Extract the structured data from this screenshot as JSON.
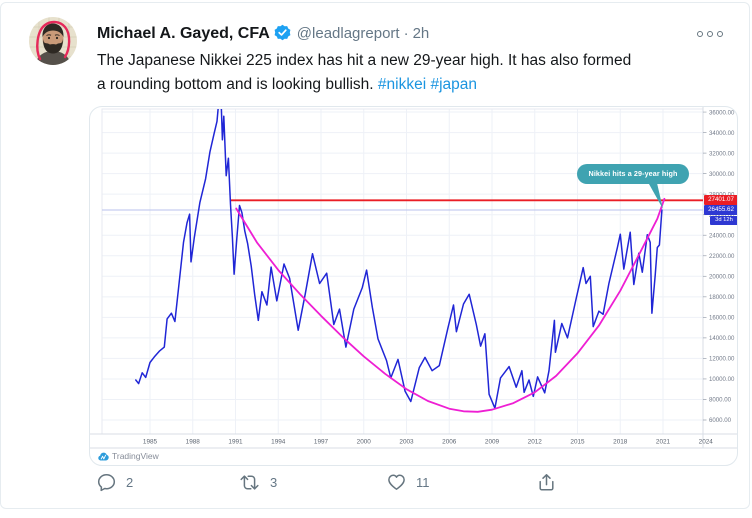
{
  "tweet": {
    "author": {
      "name": "Michael A. Gayed, CFA",
      "handle": "@leadlagreport",
      "separator": "·",
      "time": "2h"
    },
    "body": {
      "line1": "The Japanese Nikkei 225 index has hit a new 29-year high. It has also formed",
      "line2": "a rounding bottom and is looking bullish.",
      "hashtag1": "#nikkei",
      "hashtag2": "#japan"
    },
    "actions": {
      "reply_count": "2",
      "retweet_count": "3",
      "like_count": "11"
    }
  },
  "chart_data": {
    "type": "line",
    "title": "",
    "watermark": "TradingView",
    "annotation": "Nikkei hits a 29-year high",
    "legend_position": "none",
    "grid": true,
    "x_ticks": [
      "1985",
      "1988",
      "1991",
      "1994",
      "1997",
      "2000",
      "2003",
      "2006",
      "2009",
      "2012",
      "2015",
      "2018",
      "2021",
      "2024"
    ],
    "y_ticks": [
      {
        "value": 36000,
        "label": "36000.00"
      },
      {
        "value": 34000,
        "label": "34000.00"
      },
      {
        "value": 32000,
        "label": "32000.00"
      },
      {
        "value": 30000,
        "label": "30000.00"
      },
      {
        "value": 28000,
        "label": "28000.00"
      },
      {
        "value": 26000,
        "label": "26000.00"
      },
      {
        "value": 24000,
        "label": "24000.00"
      },
      {
        "value": 22000,
        "label": "22000.00"
      },
      {
        "value": 20000,
        "label": "20000.00"
      },
      {
        "value": 18000,
        "label": "18000.00"
      },
      {
        "value": 16000,
        "label": "16000.00"
      },
      {
        "value": 14000,
        "label": "14000.00"
      },
      {
        "value": 12000,
        "label": "12000.00"
      },
      {
        "value": 10000,
        "label": "10000.00"
      },
      {
        "value": 8000,
        "label": "8000.00"
      },
      {
        "value": 6000,
        "label": "6000.00"
      }
    ],
    "price_line": {
      "value": 27401.07,
      "label": "27401.07",
      "start_year": 1990.62,
      "color": "#ea1d25"
    },
    "current_price": {
      "value": 26455.62,
      "label": "26455.62",
      "countdown": "3d 12h",
      "color": "#2e38d2"
    },
    "colors": {
      "series": "#2026d6",
      "curve": "#ee1fd3",
      "callout": "#3fa3b1",
      "grid": "#eef1f7",
      "axis_text": "#737b8a"
    },
    "series": [
      {
        "name": "Nikkei 225",
        "color": "#2026d6",
        "width": 1.5,
        "points": [
          [
            1984.0,
            9900
          ],
          [
            1984.2,
            9550
          ],
          [
            1984.45,
            10600
          ],
          [
            1984.7,
            10150
          ],
          [
            1985.0,
            11600
          ],
          [
            1985.3,
            12150
          ],
          [
            1985.65,
            12700
          ],
          [
            1986.0,
            13100
          ],
          [
            1986.2,
            15850
          ],
          [
            1986.5,
            16400
          ],
          [
            1986.75,
            15600
          ],
          [
            1987.0,
            18800
          ],
          [
            1987.35,
            23300
          ],
          [
            1987.6,
            25200
          ],
          [
            1987.78,
            26050
          ],
          [
            1987.88,
            21400
          ],
          [
            1988.1,
            23700
          ],
          [
            1988.5,
            27200
          ],
          [
            1988.9,
            29500
          ],
          [
            1989.2,
            32100
          ],
          [
            1989.5,
            33900
          ],
          [
            1989.7,
            35100
          ],
          [
            1989.95,
            38900
          ],
          [
            1990.08,
            33300
          ],
          [
            1990.18,
            35600
          ],
          [
            1990.35,
            29800
          ],
          [
            1990.5,
            31500
          ],
          [
            1990.65,
            27000
          ],
          [
            1990.78,
            23800
          ],
          [
            1990.9,
            20200
          ],
          [
            1991.1,
            23800
          ],
          [
            1991.28,
            26900
          ],
          [
            1991.45,
            26200
          ],
          [
            1991.65,
            24400
          ],
          [
            1991.85,
            23200
          ],
          [
            1992.1,
            21000
          ],
          [
            1992.35,
            18200
          ],
          [
            1992.6,
            15700
          ],
          [
            1992.85,
            18500
          ],
          [
            1993.2,
            17200
          ],
          [
            1993.5,
            20900
          ],
          [
            1993.9,
            17600
          ],
          [
            1994.4,
            21200
          ],
          [
            1994.8,
            19800
          ],
          [
            1995.4,
            14750
          ],
          [
            1995.9,
            18300
          ],
          [
            1996.4,
            22200
          ],
          [
            1996.9,
            19300
          ],
          [
            1997.4,
            20300
          ],
          [
            1997.9,
            15300
          ],
          [
            1998.3,
            16800
          ],
          [
            1998.75,
            13100
          ],
          [
            1999.3,
            16800
          ],
          [
            1999.9,
            18900
          ],
          [
            2000.2,
            20600
          ],
          [
            2000.6,
            17000
          ],
          [
            2001.0,
            13900
          ],
          [
            2001.6,
            11800
          ],
          [
            2001.9,
            10100
          ],
          [
            2002.4,
            11900
          ],
          [
            2002.9,
            8800
          ],
          [
            2003.3,
            7800
          ],
          [
            2003.9,
            11100
          ],
          [
            2004.3,
            12100
          ],
          [
            2004.8,
            10800
          ],
          [
            2005.3,
            11300
          ],
          [
            2005.9,
            14900
          ],
          [
            2006.3,
            17200
          ],
          [
            2006.5,
            14600
          ],
          [
            2007.0,
            17300
          ],
          [
            2007.4,
            18250
          ],
          [
            2007.9,
            15300
          ],
          [
            2008.2,
            13200
          ],
          [
            2008.5,
            14400
          ],
          [
            2008.8,
            8500
          ],
          [
            2009.2,
            7150
          ],
          [
            2009.6,
            10100
          ],
          [
            2010.2,
            11200
          ],
          [
            2010.7,
            9200
          ],
          [
            2011.1,
            10800
          ],
          [
            2011.25,
            8700
          ],
          [
            2011.6,
            9900
          ],
          [
            2011.9,
            8300
          ],
          [
            2012.2,
            10200
          ],
          [
            2012.7,
            8650
          ],
          [
            2013.0,
            10800
          ],
          [
            2013.38,
            15700
          ],
          [
            2013.45,
            12600
          ],
          [
            2013.9,
            15400
          ],
          [
            2014.3,
            14000
          ],
          [
            2014.9,
            17800
          ],
          [
            2015.4,
            20850
          ],
          [
            2015.6,
            19300
          ],
          [
            2015.9,
            20000
          ],
          [
            2016.1,
            15100
          ],
          [
            2016.5,
            16600
          ],
          [
            2016.8,
            16300
          ],
          [
            2017.2,
            19300
          ],
          [
            2017.8,
            22800
          ],
          [
            2018.0,
            24100
          ],
          [
            2018.25,
            20700
          ],
          [
            2018.7,
            24300
          ],
          [
            2018.95,
            19200
          ],
          [
            2019.3,
            22250
          ],
          [
            2019.55,
            20400
          ],
          [
            2019.9,
            24050
          ],
          [
            2020.1,
            23300
          ],
          [
            2020.22,
            16400
          ],
          [
            2020.45,
            20100
          ],
          [
            2020.6,
            22800
          ],
          [
            2020.75,
            23050
          ],
          [
            2020.92,
            26455
          ]
        ]
      },
      {
        "name": "Rounding bottom curve",
        "color": "#ee1fd3",
        "width": 1.8,
        "points": [
          [
            1991.05,
            26600
          ],
          [
            1992.5,
            23300
          ],
          [
            1994,
            20600
          ],
          [
            1995.5,
            18300
          ],
          [
            1997,
            16150
          ],
          [
            1998.5,
            14100
          ],
          [
            2000,
            12200
          ],
          [
            2001.5,
            10500
          ],
          [
            2003,
            9000
          ],
          [
            2004.5,
            7850
          ],
          [
            2006,
            7100
          ],
          [
            2007,
            6850
          ],
          [
            2008,
            6800
          ],
          [
            2009,
            7000
          ],
          [
            2010.5,
            7650
          ],
          [
            2012,
            8700
          ],
          [
            2013.5,
            10300
          ],
          [
            2015,
            12500
          ],
          [
            2016.5,
            15200
          ],
          [
            2018,
            18600
          ],
          [
            2019.5,
            22600
          ],
          [
            2020.6,
            25600
          ],
          [
            2021.1,
            27550
          ]
        ]
      }
    ]
  }
}
